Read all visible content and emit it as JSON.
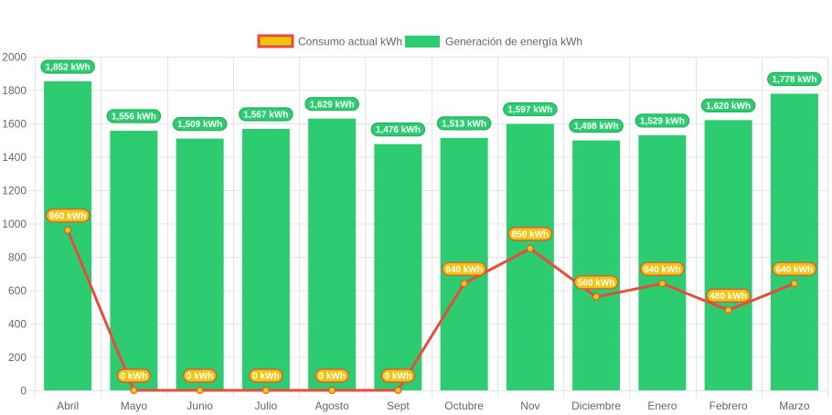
{
  "chart_data": {
    "type": "bar",
    "title": "",
    "xlabel": "",
    "ylabel": "",
    "ylim": [
      0,
      2000
    ],
    "y_ticks": [
      0,
      200,
      400,
      600,
      800,
      1000,
      1200,
      1400,
      1600,
      1800,
      2000
    ],
    "grid": true,
    "legend_position": "top",
    "categories": [
      "Abril",
      "Mayo",
      "Junio",
      "Julio",
      "Agosto",
      "Sept",
      "Octubre",
      "Nov",
      "Diciembre",
      "Enero",
      "Febrero",
      "Marzo"
    ],
    "series": [
      {
        "name": "Consumo actual kWh",
        "type": "line",
        "color": "#e74c3c",
        "fill": "#f1c40f",
        "values": [
          960,
          0,
          0,
          0,
          0,
          0,
          640,
          850,
          560,
          640,
          480,
          640
        ],
        "labels": [
          "960 kWh",
          "0 kWh",
          "0 kWh",
          "0 kWh",
          "0 kWh",
          "0 kWh",
          "640 kWh",
          "850 kWh",
          "560 kWh",
          "640 kWh",
          "480 kWh",
          "640 kWh"
        ]
      },
      {
        "name": "Generación de energía kWh",
        "type": "bar",
        "color": "#2ecc71",
        "values": [
          1852,
          1556,
          1509,
          1567,
          1629,
          1476,
          1513,
          1597,
          1498,
          1529,
          1620,
          1778
        ],
        "labels": [
          "1,852 kWh",
          "1,556 kWh",
          "1,509 kWh",
          "1,567 kWh",
          "1,629 kWh",
          "1,476 kWh",
          "1,513 kWh",
          "1,597 kWh",
          "1,498 kWh",
          "1,529 kWh",
          "1,620 kWh",
          "1,778 kWh"
        ]
      }
    ]
  },
  "colors": {
    "grid": "#e5e5e5",
    "axis_text": "#666666",
    "label_text": "#ffffff"
  }
}
